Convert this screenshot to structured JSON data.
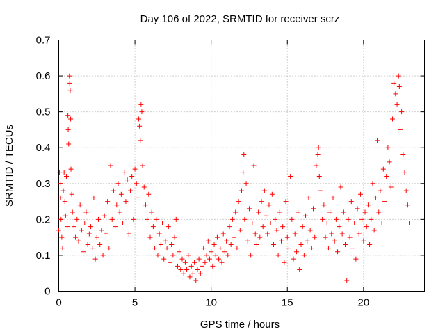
{
  "chart_data": {
    "type": "scatter",
    "title": "Day 106 of 2022, SRMTID for receiver scrz",
    "xlabel": "GPS time / hours",
    "ylabel": "SRMTID / TECUs",
    "xlim": [
      0,
      24
    ],
    "ylim": [
      0,
      0.7
    ],
    "xticks": [
      0,
      5,
      10,
      15,
      20
    ],
    "yticks": [
      0,
      0.1,
      0.2,
      0.3,
      0.4,
      0.5,
      0.6,
      0.7
    ],
    "grid": true,
    "marker": "+",
    "color": "#ff0000",
    "series": [
      {
        "name": "SRMTID",
        "points": [
          [
            0.0,
            0.17
          ],
          [
            0.05,
            0.33
          ],
          [
            0.1,
            0.3
          ],
          [
            0.12,
            0.26
          ],
          [
            0.15,
            0.2
          ],
          [
            0.2,
            0.15
          ],
          [
            0.25,
            0.12
          ],
          [
            0.3,
            0.28
          ],
          [
            0.35,
            0.33
          ],
          [
            0.4,
            0.25
          ],
          [
            0.45,
            0.21
          ],
          [
            0.5,
            0.32
          ],
          [
            0.55,
            0.18
          ],
          [
            0.6,
            0.49
          ],
          [
            0.62,
            0.45
          ],
          [
            0.65,
            0.41
          ],
          [
            0.7,
            0.6
          ],
          [
            0.72,
            0.58
          ],
          [
            0.75,
            0.56
          ],
          [
            0.78,
            0.48
          ],
          [
            0.8,
            0.34
          ],
          [
            0.85,
            0.27
          ],
          [
            0.9,
            0.22
          ],
          [
            1.0,
            0.18
          ],
          [
            1.1,
            0.15
          ],
          [
            1.2,
            0.2
          ],
          [
            1.3,
            0.14
          ],
          [
            1.4,
            0.24
          ],
          [
            1.5,
            0.17
          ],
          [
            1.6,
            0.11
          ],
          [
            1.7,
            0.19
          ],
          [
            1.8,
            0.22
          ],
          [
            1.9,
            0.13
          ],
          [
            2.0,
            0.16
          ],
          [
            2.1,
            0.18
          ],
          [
            2.2,
            0.12
          ],
          [
            2.3,
            0.26
          ],
          [
            2.4,
            0.09
          ],
          [
            2.5,
            0.15
          ],
          [
            2.6,
            0.2
          ],
          [
            2.7,
            0.13
          ],
          [
            2.8,
            0.17
          ],
          [
            2.9,
            0.1
          ],
          [
            3.0,
            0.21
          ],
          [
            3.1,
            0.16
          ],
          [
            3.2,
            0.25
          ],
          [
            3.3,
            0.12
          ],
          [
            3.4,
            0.35
          ],
          [
            3.5,
            0.2
          ],
          [
            3.6,
            0.28
          ],
          [
            3.7,
            0.18
          ],
          [
            3.8,
            0.24
          ],
          [
            3.9,
            0.3
          ],
          [
            4.0,
            0.22
          ],
          [
            4.1,
            0.27
          ],
          [
            4.2,
            0.19
          ],
          [
            4.3,
            0.33
          ],
          [
            4.4,
            0.25
          ],
          [
            4.5,
            0.31
          ],
          [
            4.6,
            0.16
          ],
          [
            4.7,
            0.28
          ],
          [
            4.8,
            0.32
          ],
          [
            4.9,
            0.2
          ],
          [
            5.0,
            0.34
          ],
          [
            5.1,
            0.3
          ],
          [
            5.2,
            0.26
          ],
          [
            5.25,
            0.48
          ],
          [
            5.3,
            0.46
          ],
          [
            5.35,
            0.42
          ],
          [
            5.4,
            0.52
          ],
          [
            5.45,
            0.5
          ],
          [
            5.5,
            0.35
          ],
          [
            5.6,
            0.29
          ],
          [
            5.7,
            0.24
          ],
          [
            5.8,
            0.2
          ],
          [
            5.9,
            0.27
          ],
          [
            6.0,
            0.15
          ],
          [
            6.1,
            0.22
          ],
          [
            6.2,
            0.18
          ],
          [
            6.3,
            0.12
          ],
          [
            6.4,
            0.2
          ],
          [
            6.5,
            0.1
          ],
          [
            6.6,
            0.16
          ],
          [
            6.7,
            0.13
          ],
          [
            6.8,
            0.19
          ],
          [
            6.9,
            0.09
          ],
          [
            7.0,
            0.14
          ],
          [
            7.1,
            0.12
          ],
          [
            7.2,
            0.18
          ],
          [
            7.3,
            0.08
          ],
          [
            7.4,
            0.13
          ],
          [
            7.5,
            0.1
          ],
          [
            7.6,
            0.15
          ],
          [
            7.7,
            0.2
          ],
          [
            7.8,
            0.07
          ],
          [
            7.9,
            0.11
          ],
          [
            8.0,
            0.06
          ],
          [
            8.1,
            0.09
          ],
          [
            8.2,
            0.05
          ],
          [
            8.3,
            0.08
          ],
          [
            8.4,
            0.06
          ],
          [
            8.5,
            0.1
          ],
          [
            8.6,
            0.04
          ],
          [
            8.7,
            0.07
          ],
          [
            8.8,
            0.05
          ],
          [
            8.9,
            0.08
          ],
          [
            9.0,
            0.03
          ],
          [
            9.1,
            0.06
          ],
          [
            9.2,
            0.09
          ],
          [
            9.3,
            0.05
          ],
          [
            9.4,
            0.07
          ],
          [
            9.5,
            0.12
          ],
          [
            9.6,
            0.08
          ],
          [
            9.7,
            0.1
          ],
          [
            9.8,
            0.14
          ],
          [
            9.9,
            0.09
          ],
          [
            10.0,
            0.11
          ],
          [
            10.1,
            0.07
          ],
          [
            10.2,
            0.13
          ],
          [
            10.3,
            0.1
          ],
          [
            10.4,
            0.15
          ],
          [
            10.5,
            0.09
          ],
          [
            10.6,
            0.12
          ],
          [
            10.7,
            0.08
          ],
          [
            10.8,
            0.16
          ],
          [
            10.9,
            0.11
          ],
          [
            11.0,
            0.14
          ],
          [
            11.1,
            0.1
          ],
          [
            11.2,
            0.18
          ],
          [
            11.3,
            0.13
          ],
          [
            11.4,
            0.2
          ],
          [
            11.5,
            0.15
          ],
          [
            11.6,
            0.22
          ],
          [
            11.7,
            0.12
          ],
          [
            11.8,
            0.25
          ],
          [
            11.9,
            0.17
          ],
          [
            12.0,
            0.28
          ],
          [
            12.1,
            0.33
          ],
          [
            12.15,
            0.38
          ],
          [
            12.2,
            0.2
          ],
          [
            12.3,
            0.3
          ],
          [
            12.4,
            0.14
          ],
          [
            12.5,
            0.23
          ],
          [
            12.6,
            0.1
          ],
          [
            12.7,
            0.19
          ],
          [
            12.8,
            0.35
          ],
          [
            12.9,
            0.16
          ],
          [
            13.0,
            0.13
          ],
          [
            13.1,
            0.22
          ],
          [
            13.2,
            0.15
          ],
          [
            13.3,
            0.25
          ],
          [
            13.4,
            0.18
          ],
          [
            13.5,
            0.28
          ],
          [
            13.6,
            0.21
          ],
          [
            13.7,
            0.16
          ],
          [
            13.8,
            0.24
          ],
          [
            13.9,
            0.19
          ],
          [
            14.0,
            0.27
          ],
          [
            14.1,
            0.13
          ],
          [
            14.2,
            0.2
          ],
          [
            14.3,
            0.17
          ],
          [
            14.4,
            0.1
          ],
          [
            14.5,
            0.22
          ],
          [
            14.6,
            0.14
          ],
          [
            14.7,
            0.18
          ],
          [
            14.8,
            0.08
          ],
          [
            14.9,
            0.25
          ],
          [
            15.0,
            0.15
          ],
          [
            15.1,
            0.12
          ],
          [
            15.2,
            0.32
          ],
          [
            15.3,
            0.2
          ],
          [
            15.4,
            0.09
          ],
          [
            15.5,
            0.16
          ],
          [
            15.6,
            0.11
          ],
          [
            15.7,
            0.22
          ],
          [
            15.8,
            0.06
          ],
          [
            15.9,
            0.13
          ],
          [
            16.0,
            0.18
          ],
          [
            16.1,
            0.1
          ],
          [
            16.2,
            0.21
          ],
          [
            16.3,
            0.14
          ],
          [
            16.4,
            0.26
          ],
          [
            16.5,
            0.17
          ],
          [
            16.6,
            0.12
          ],
          [
            16.7,
            0.23
          ],
          [
            16.8,
            0.15
          ],
          [
            16.9,
            0.35
          ],
          [
            17.0,
            0.38
          ],
          [
            17.05,
            0.4
          ],
          [
            17.1,
            0.32
          ],
          [
            17.2,
            0.28
          ],
          [
            17.3,
            0.2
          ],
          [
            17.4,
            0.24
          ],
          [
            17.5,
            0.15
          ],
          [
            17.6,
            0.19
          ],
          [
            17.7,
            0.12
          ],
          [
            17.8,
            0.22
          ],
          [
            17.9,
            0.16
          ],
          [
            18.0,
            0.26
          ],
          [
            18.1,
            0.14
          ],
          [
            18.2,
            0.2
          ],
          [
            18.3,
            0.11
          ],
          [
            18.4,
            0.18
          ],
          [
            18.5,
            0.29
          ],
          [
            18.6,
            0.16
          ],
          [
            18.7,
            0.22
          ],
          [
            18.8,
            0.13
          ],
          [
            18.9,
            0.03
          ],
          [
            19.0,
            0.2
          ],
          [
            19.1,
            0.15
          ],
          [
            19.2,
            0.25
          ],
          [
            19.3,
            0.12
          ],
          [
            19.4,
            0.19
          ],
          [
            19.5,
            0.09
          ],
          [
            19.6,
            0.23
          ],
          [
            19.7,
            0.16
          ],
          [
            19.8,
            0.27
          ],
          [
            19.9,
            0.2
          ],
          [
            20.0,
            0.14
          ],
          [
            20.1,
            0.22
          ],
          [
            20.2,
            0.18
          ],
          [
            20.3,
            0.24
          ],
          [
            20.4,
            0.13
          ],
          [
            20.5,
            0.2
          ],
          [
            20.6,
            0.3
          ],
          [
            20.7,
            0.17
          ],
          [
            20.8,
            0.26
          ],
          [
            20.9,
            0.42
          ],
          [
            21.0,
            0.22
          ],
          [
            21.1,
            0.28
          ],
          [
            21.2,
            0.19
          ],
          [
            21.3,
            0.34
          ],
          [
            21.4,
            0.25
          ],
          [
            21.5,
            0.32
          ],
          [
            21.6,
            0.4
          ],
          [
            21.7,
            0.36
          ],
          [
            21.8,
            0.29
          ],
          [
            21.9,
            0.48
          ],
          [
            22.0,
            0.58
          ],
          [
            22.1,
            0.55
          ],
          [
            22.2,
            0.52
          ],
          [
            22.3,
            0.6
          ],
          [
            22.35,
            0.57
          ],
          [
            22.4,
            0.45
          ],
          [
            22.5,
            0.5
          ],
          [
            22.6,
            0.38
          ],
          [
            22.7,
            0.33
          ],
          [
            22.8,
            0.28
          ],
          [
            22.9,
            0.24
          ],
          [
            23.0,
            0.19
          ]
        ]
      }
    ]
  }
}
